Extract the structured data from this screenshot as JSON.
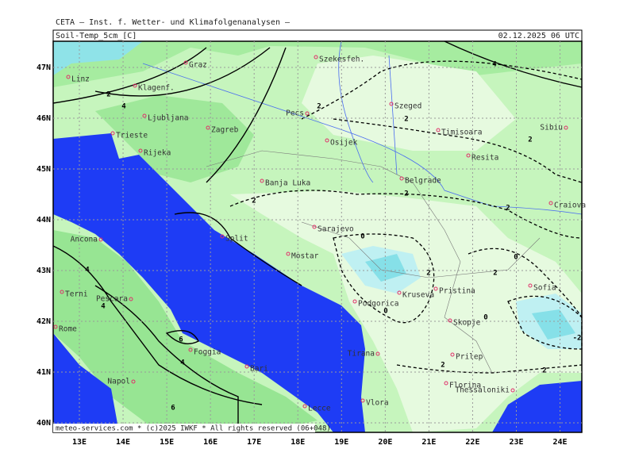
{
  "header": {
    "title": "CETA — Inst. f. Wetter- und Klimafolgenanalysen —",
    "parameter": "Soil-Temp_5cm_[C]",
    "valid_time": "02.12.2025 06 UTC"
  },
  "lat_ticks": [
    {
      "value": 47,
      "label": "47N"
    },
    {
      "value": 46,
      "label": "46N"
    },
    {
      "value": 45,
      "label": "45N"
    },
    {
      "value": 44,
      "label": "44N"
    },
    {
      "value": 43,
      "label": "43N"
    },
    {
      "value": 42,
      "label": "42N"
    },
    {
      "value": 41,
      "label": "41N"
    },
    {
      "value": 40,
      "label": "40N"
    }
  ],
  "lon_ticks": [
    {
      "value": 13,
      "label": "13E"
    },
    {
      "value": 14,
      "label": "14E"
    },
    {
      "value": 15,
      "label": "15E"
    },
    {
      "value": 16,
      "label": "16E"
    },
    {
      "value": 17,
      "label": "17E"
    },
    {
      "value": 18,
      "label": "18E"
    },
    {
      "value": 19,
      "label": "19E"
    },
    {
      "value": 20,
      "label": "20E"
    },
    {
      "value": 21,
      "label": "21E"
    },
    {
      "value": 22,
      "label": "22E"
    },
    {
      "value": 23,
      "label": "23E"
    },
    {
      "value": 24,
      "label": "24E"
    }
  ],
  "cities": [
    "Linz",
    "Graz",
    "Szekesfeh.",
    "Klagenf.",
    "Ljubljana",
    "Zagreb",
    "Szeged",
    "Pecs",
    "Timisoara",
    "Sibiu",
    "Trieste",
    "Rijeka",
    "Osijek",
    "Resita",
    "Banja Luka",
    "Belgrade",
    "Craiova",
    "Sarajevo",
    "Ancona",
    "Split",
    "Mostar",
    "Terni",
    "Pescara",
    "Podgorica",
    "Kruseva",
    "Pristina",
    "Sofia",
    "Rome",
    "Skopje",
    "Foggia",
    "Tirana",
    "Prilep",
    "Bari",
    "Napol",
    "Florina",
    "Thessaloniki",
    "Lecce",
    "Vlora"
  ],
  "contour_labels": [
    "4",
    "2",
    "4",
    "2",
    "2",
    "2",
    "2",
    "2",
    "2",
    "0",
    "2",
    "0",
    "2",
    "0",
    "4",
    "4",
    "6",
    "4",
    "6",
    "0",
    "-2",
    "2",
    "2"
  ],
  "footer": "meteo-services.com * (c)2025 IWKF * All rights reserved (06+048)"
}
